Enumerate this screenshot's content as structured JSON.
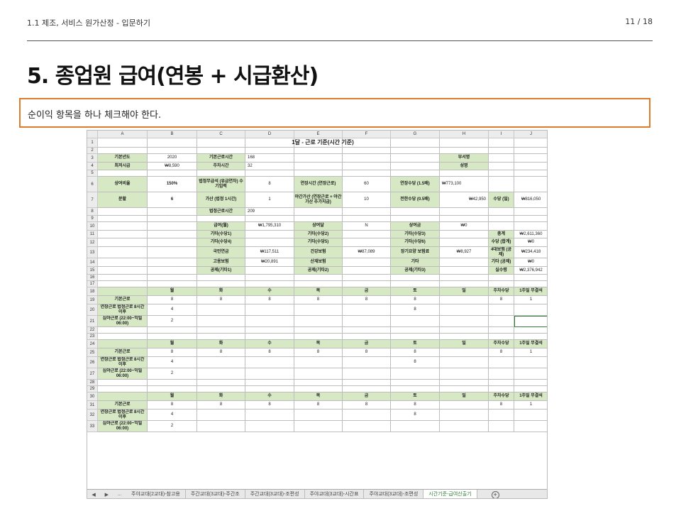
{
  "header": {
    "breadcrumb": "1.1 제조, 서비스 원가산정 - 입문하기",
    "page": "11 / 18"
  },
  "title": "5. 종업원 급여(연봉 + 시급환산)",
  "note": "순이익 항목을 하나 체크해야 한다.",
  "sheet": {
    "columns": [
      "A",
      "B",
      "C",
      "D",
      "E",
      "F",
      "G",
      "H",
      "I",
      "J"
    ],
    "rows": [
      "1",
      "2",
      "3",
      "4",
      "5",
      "6",
      "7",
      "8",
      "9",
      "10",
      "11",
      "12",
      "13",
      "14",
      "15",
      "16",
      "17",
      "18",
      "19",
      "20",
      "21",
      "22",
      "23",
      "24",
      "25",
      "26",
      "27",
      "28",
      "29",
      "30",
      "31",
      "32",
      "33"
    ],
    "title": "1달 - 근로 기준(시간 기준)",
    "base_year_label": "기본년도",
    "base_year": "2020",
    "base_hours_label": "기본근로시간",
    "base_hours": "168",
    "min_wage_label": "최저시급",
    "min_wage": "₩8,590",
    "weekly_hours_label": "주차시간",
    "weekly_hours": "32",
    "dept_label": "부서명",
    "name_label": "성명",
    "ratio_label": "상여비율",
    "ratio": "150%",
    "holiday_label": "법정무급석 (유급연차) 수기입력",
    "holiday": "8",
    "overtime_label": "연장시간 (연장근로)",
    "overtime": "60",
    "overtime_pay_label": "연장수당 (1.5배)",
    "overtime_pay": "₩773,100",
    "split_label": "분할",
    "split": "6",
    "add_label": "가산 (법정 1시간)",
    "add": "1",
    "night_label": "야간가산 (연장근로 + 야간가산 추가지급)",
    "night": "10",
    "night_pay_label": "전한수당 (0.5배)",
    "night_pay": "₩42,950",
    "allowance_label": "수당 (일)",
    "allowance": "₩816,050",
    "legal_hours_label": "법정근로시간",
    "legal_hours": "209",
    "salary_label": "급여(월)",
    "salary": "₩1,795,310",
    "bonus_month_label": "상여달",
    "bonus_month": "N",
    "bonus_label": "상여금",
    "bonus": "₩0",
    "etc1": "기타(수당1)",
    "etc2": "기타(수당2)",
    "etc3": "기타(수당3)",
    "etc4": "기타(수당4)",
    "etc5": "기타(수당5)",
    "etc6": "기타(수당6)",
    "total_label": "총계",
    "total": "₩2,611,360",
    "allow_sum_label": "수당 (합계)",
    "allow_sum": "₩0",
    "pension_label": "국민연금",
    "pension": "₩117,511",
    "health_label": "건강보험",
    "health": "₩87,089",
    "care_label": "장기요양 보험료",
    "care": "₩8,927",
    "insurance4_label": "4대보험 (공제)",
    "insurance4": "₩234,418",
    "employ_label": "고용보험",
    "employ": "₩20,891",
    "industrial_label": "산재보험",
    "other_label": "기타",
    "other_ded_label": "기타 (공제)",
    "other_ded": "₩0",
    "ded1": "공제(기타1)",
    "ded2": "공제(기타2)",
    "ded3": "공제(기타3)",
    "net_label": "실수령",
    "net": "₩2,376,942",
    "days": [
      "월",
      "화",
      "수",
      "목",
      "금",
      "토",
      "일"
    ],
    "weekly_pay_label": "주차수당",
    "weekly_rest_label": "1주일 무결석",
    "row_basic": "기본근로",
    "row_ext": "연장근로 법정근로 8시간 이후",
    "row_night": "심야근로 (22:00~익일 06:00)",
    "basic_vals": [
      "8",
      "8",
      "8",
      "8",
      "8",
      "8",
      "",
      "8",
      "1"
    ],
    "ext_val": "4",
    "ext_sat": "8",
    "night_val": "2"
  },
  "tabs": {
    "nav_prev": "◀",
    "nav_next": "▶",
    "more": "...",
    "items": [
      "주야교대(2교대)-참고용",
      "주간교대(3교대)-주간조",
      "주간교대(3교대)-조편성",
      "주야교대(3교대)-시간표",
      "주야교대(3교대)-조편성",
      "시간기준-급여산출기"
    ],
    "add": "+"
  }
}
